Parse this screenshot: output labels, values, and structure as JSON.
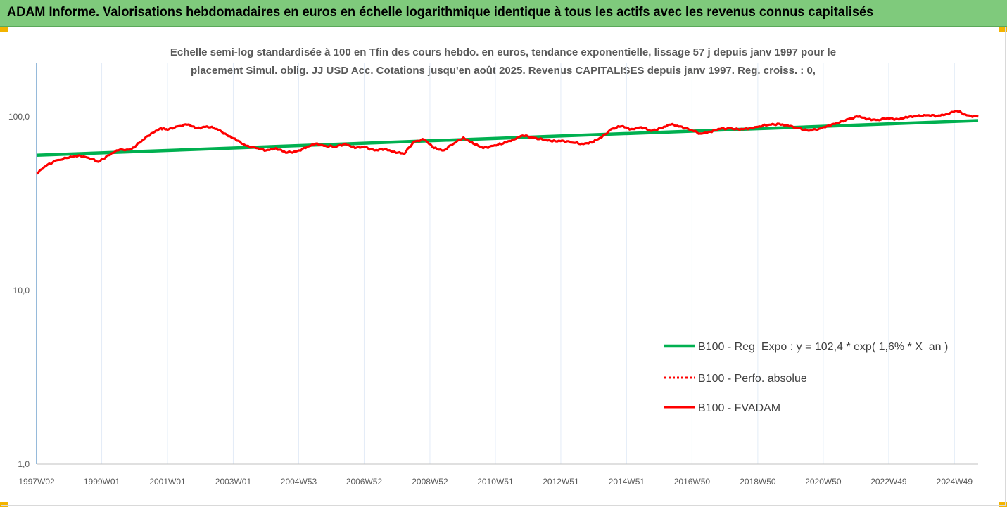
{
  "header": {
    "title": "ADAM Informe. Valorisations hebdomadaires en euros en échelle logarithmique identique à tous les actifs avec les revenus connus capitalisés",
    "bg_color": "#7fca7c"
  },
  "chart_data": {
    "type": "line",
    "title_lines": [
      "Echelle semi-log standardisée à 100 en Tfin des cours hebdo. en euros, tendance exponentielle, lissage 57 j depuis janv 1997 pour le",
      "placement Simul. oblig. JJ USD Acc. Cotations jusqu'en août 2025. Revenus CAPITALISES depuis janv 1997. Reg. croiss. : 0,"
    ],
    "y_scale": "log",
    "ylim": [
      1,
      200
    ],
    "y_ticks": [
      {
        "value": 1,
        "label": "1,0"
      },
      {
        "value": 10,
        "label": "10,0"
      },
      {
        "value": 100,
        "label": "100,0"
      }
    ],
    "xlim": [
      1997.02,
      2025.65
    ],
    "x_ticks": [
      {
        "label": "1997W02",
        "x": 1997.02
      },
      {
        "label": "1999W01",
        "x": 1999.0
      },
      {
        "label": "2001W01",
        "x": 2001.0
      },
      {
        "label": "2003W01",
        "x": 2003.0
      },
      {
        "label": "2004W53",
        "x": 2004.99
      },
      {
        "label": "2006W52",
        "x": 2006.98
      },
      {
        "label": "2008W52",
        "x": 2008.98
      },
      {
        "label": "2010W51",
        "x": 2010.97
      },
      {
        "label": "2012W51",
        "x": 2012.96
      },
      {
        "label": "2014W51",
        "x": 2014.96
      },
      {
        "label": "2016W50",
        "x": 2016.95
      },
      {
        "label": "2018W50",
        "x": 2018.95
      },
      {
        "label": "2020W50",
        "x": 2020.94
      },
      {
        "label": "2022W49",
        "x": 2022.93
      },
      {
        "label": "2024W49",
        "x": 2024.93
      }
    ],
    "grid": "vertical",
    "legend_position": "bottom-right",
    "series": [
      {
        "name": "B100 - Reg_Expo : y = 102,4 * exp( 1,6% *  X_an )",
        "color": "#00b050",
        "style": "solid",
        "x": [
          1997.02,
          2025.65
        ],
        "y": [
          60.0,
          95.0
        ]
      },
      {
        "name": "B100 - Perfo. absolue",
        "color": "#ff0000",
        "style": "dotted",
        "x": [],
        "y": []
      },
      {
        "name": "B100 - FVADAM",
        "color": "#ff0000",
        "style": "solid",
        "x": [
          1997.02,
          1997.3,
          1997.6,
          1998.0,
          1998.3,
          1998.6,
          1998.9,
          1999.2,
          1999.5,
          1999.9,
          2000.2,
          2000.5,
          2000.8,
          2001.0,
          2001.3,
          2001.6,
          2001.9,
          2002.2,
          2002.5,
          2002.8,
          2003.1,
          2003.4,
          2003.7,
          2004.0,
          2004.3,
          2004.6,
          2004.9,
          2005.2,
          2005.5,
          2005.8,
          2006.1,
          2006.4,
          2006.7,
          2007.0,
          2007.3,
          2007.6,
          2007.9,
          2008.2,
          2008.5,
          2008.8,
          2009.1,
          2009.4,
          2009.7,
          2010.0,
          2010.3,
          2010.6,
          2010.9,
          2011.2,
          2011.5,
          2011.8,
          2012.1,
          2012.4,
          2012.7,
          2013.0,
          2013.3,
          2013.6,
          2013.9,
          2014.2,
          2014.5,
          2014.8,
          2015.1,
          2015.4,
          2015.7,
          2016.0,
          2016.3,
          2016.6,
          2016.9,
          2017.2,
          2017.5,
          2017.8,
          2018.1,
          2018.4,
          2018.7,
          2019.0,
          2019.3,
          2019.6,
          2019.9,
          2020.2,
          2020.5,
          2020.8,
          2021.1,
          2021.4,
          2021.7,
          2022.0,
          2022.3,
          2022.6,
          2022.9,
          2023.2,
          2023.5,
          2023.8,
          2024.1,
          2024.4,
          2024.7,
          2025.0,
          2025.3,
          2025.65
        ],
        "y": [
          47,
          52,
          56,
          58,
          60,
          58,
          55,
          60,
          64,
          65,
          72,
          80,
          86,
          84,
          88,
          90,
          86,
          88,
          85,
          79,
          73,
          68,
          66,
          64,
          66,
          62,
          63,
          66,
          70,
          68,
          67,
          70,
          66,
          67,
          64,
          65,
          63,
          61,
          72,
          74,
          66,
          64,
          70,
          76,
          70,
          66,
          68,
          70,
          74,
          78,
          76,
          74,
          72,
          73,
          71,
          70,
          71,
          76,
          85,
          88,
          85,
          87,
          83,
          86,
          90,
          88,
          84,
          80,
          82,
          85,
          86,
          84,
          86,
          88,
          90,
          91,
          88,
          86,
          83,
          85,
          89,
          92,
          97,
          100,
          97,
          96,
          98,
          97,
          99,
          101,
          102,
          101,
          104,
          108,
          102,
          100
        ]
      }
    ]
  }
}
